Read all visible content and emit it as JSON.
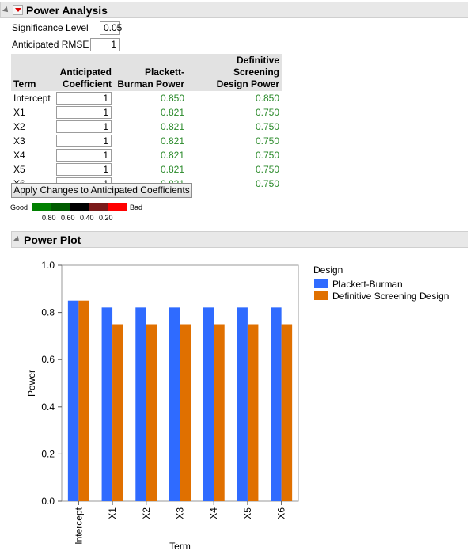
{
  "power_analysis": {
    "title": "Power Analysis",
    "significance_label": "Significance Level",
    "significance_value": "0.05",
    "rmse_label": "Anticipated RMSE",
    "rmse_value": "1",
    "table": {
      "headers": {
        "term": "Term",
        "coef_1": "Anticipated",
        "coef_2": "Coefficient",
        "pb_1": "Plackett-",
        "pb_2": "Burman Power",
        "dsd_1": "Definitive Screening",
        "dsd_2": "Design Power"
      },
      "rows": [
        {
          "term": "Intercept",
          "coef": "1",
          "pb": "0.850",
          "dsd": "0.850"
        },
        {
          "term": "X1",
          "coef": "1",
          "pb": "0.821",
          "dsd": "0.750"
        },
        {
          "term": "X2",
          "coef": "1",
          "pb": "0.821",
          "dsd": "0.750"
        },
        {
          "term": "X3",
          "coef": "1",
          "pb": "0.821",
          "dsd": "0.750"
        },
        {
          "term": "X4",
          "coef": "1",
          "pb": "0.821",
          "dsd": "0.750"
        },
        {
          "term": "X5",
          "coef": "1",
          "pb": "0.821",
          "dsd": "0.750"
        },
        {
          "term": "X6",
          "coef": "1",
          "pb": "0.821",
          "dsd": "0.750"
        }
      ]
    },
    "apply_button": "Apply Changes to Anticipated Coefficients",
    "color_legend": {
      "good": "Good",
      "bad": "Bad",
      "ticks": [
        "0.80",
        "0.60",
        "0.40",
        "0.20"
      ],
      "colors": [
        "#008000",
        "#005a00",
        "#000000",
        "#7a1a1a",
        "#ff0000"
      ]
    }
  },
  "power_plot": {
    "title": "Power Plot"
  },
  "chart_data": {
    "type": "bar",
    "categories": [
      "Intercept",
      "X1",
      "X2",
      "X3",
      "X4",
      "X5",
      "X6"
    ],
    "series": [
      {
        "name": "Plackett-Burman",
        "values": [
          0.85,
          0.821,
          0.821,
          0.821,
          0.821,
          0.821,
          0.821
        ],
        "color": "#2f6bff"
      },
      {
        "name": "Definitive Screening Design",
        "values": [
          0.85,
          0.75,
          0.75,
          0.75,
          0.75,
          0.75,
          0.75
        ],
        "color": "#e07000"
      }
    ],
    "xlabel": "Term",
    "ylabel": "Power",
    "ylim": [
      0,
      1
    ],
    "yticks": [
      "0.0",
      "0.2",
      "0.4",
      "0.6",
      "0.8",
      "1.0"
    ],
    "legend_title": "Design",
    "legend_position": "right",
    "grid": false
  }
}
